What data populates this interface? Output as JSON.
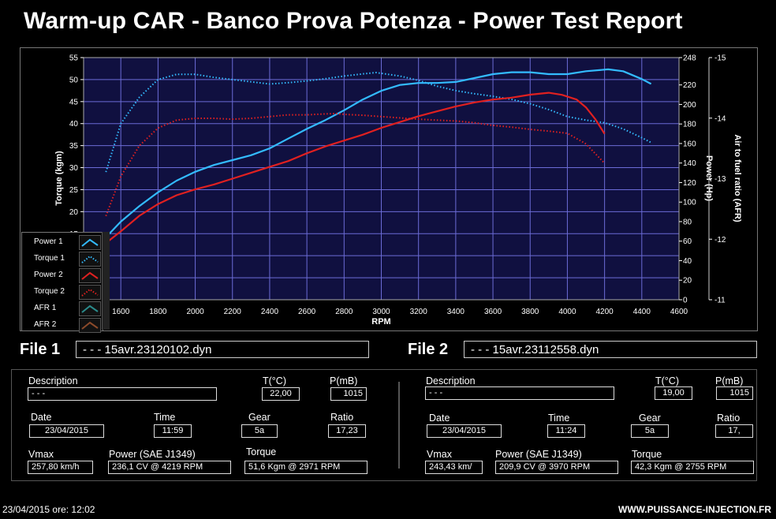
{
  "title": "Warm-up CAR  - Banco Prova Potenza -  Power Test Report",
  "chart_data": {
    "type": "line",
    "xlabel": "RPM",
    "ylabel_left": "Torque (kgm)",
    "ylabel_power": "Power (Hp)",
    "ylabel_afr": "Air to fuel ratio (AFR)",
    "xlim": [
      1400,
      4600
    ],
    "ylim_torque": [
      0,
      55
    ],
    "ylim_power": [
      0,
      248
    ],
    "ylim_afr": [
      11,
      15
    ],
    "x_ticks": [
      "1600",
      "1800",
      "2000",
      "2200",
      "2400",
      "2600",
      "2800",
      "3000",
      "3200",
      "3400",
      "3600",
      "3800",
      "4000",
      "4200",
      "4400",
      "4600"
    ],
    "torque_ticks": [
      "15",
      "20",
      "25",
      "30",
      "35",
      "40",
      "45",
      "50",
      "55"
    ],
    "power_ticks": [
      "0",
      "20",
      "40",
      "60",
      "80",
      "100",
      "120",
      "140",
      "160",
      "180",
      "200",
      "220",
      "248"
    ],
    "afr_ticks": [
      "-11",
      "-12",
      "-13",
      "-14",
      "-15"
    ],
    "grid": true,
    "series": [
      {
        "name": "Power 1",
        "axis": "power",
        "color": "#33bbff",
        "style": "solid",
        "x": [
          1500,
          1600,
          1700,
          1800,
          1900,
          2000,
          2100,
          2200,
          2300,
          2400,
          2500,
          2600,
          2700,
          2800,
          2900,
          3000,
          3100,
          3200,
          3300,
          3400,
          3500,
          3600,
          3700,
          3800,
          3900,
          4000,
          4100,
          4219,
          4300,
          4400,
          4450
        ],
        "y": [
          60,
          80,
          96,
          110,
          122,
          131,
          138,
          143,
          148,
          155,
          165,
          175,
          184,
          194,
          205,
          214,
          220,
          222,
          222,
          223,
          227,
          231,
          233,
          233,
          231,
          231,
          234,
          236,
          234,
          226,
          221
        ]
      },
      {
        "name": "Torque 1",
        "axis": "torque",
        "color": "#33bbff",
        "style": "dotted",
        "x": [
          1520,
          1600,
          1700,
          1800,
          1900,
          2000,
          2100,
          2200,
          2300,
          2400,
          2500,
          2600,
          2700,
          2800,
          2900,
          2971,
          3100,
          3200,
          3300,
          3400,
          3500,
          3600,
          3700,
          3800,
          3900,
          4000,
          4100,
          4200,
          4300,
          4400,
          4450
        ],
        "y": [
          29,
          40,
          46,
          50,
          51.2,
          51.2,
          50.5,
          50,
          49.5,
          49,
          49.3,
          49.7,
          50.2,
          50.8,
          51.3,
          51.6,
          50.8,
          49.8,
          48.5,
          47.5,
          46.8,
          46.2,
          45.5,
          44.5,
          43.2,
          41.6,
          40.8,
          40.2,
          38.8,
          36.8,
          35.7
        ]
      },
      {
        "name": "Power 2",
        "axis": "power",
        "color": "#e02020",
        "style": "solid",
        "x": [
          1500,
          1600,
          1700,
          1800,
          1900,
          2000,
          2100,
          2200,
          2300,
          2400,
          2500,
          2600,
          2700,
          2800,
          2900,
          3000,
          3100,
          3200,
          3300,
          3400,
          3500,
          3600,
          3700,
          3800,
          3900,
          3970,
          4050,
          4100,
          4150,
          4200
        ],
        "y": [
          55,
          70,
          86,
          98,
          107,
          113,
          118,
          124,
          130,
          136,
          142,
          150,
          157,
          163,
          169,
          176,
          182,
          188,
          193,
          198,
          202,
          205,
          207,
          210,
          212,
          209.9,
          205,
          197,
          185,
          170
        ]
      },
      {
        "name": "Torque 2",
        "axis": "torque",
        "color": "#e02020",
        "style": "dotted",
        "x": [
          1520,
          1600,
          1700,
          1800,
          1900,
          2000,
          2100,
          2200,
          2300,
          2400,
          2500,
          2600,
          2700,
          2755,
          2800,
          2900,
          3000,
          3100,
          3200,
          3300,
          3400,
          3500,
          3600,
          3700,
          3800,
          3900,
          4000,
          4100,
          4200
        ],
        "y": [
          19,
          28,
          35,
          39,
          40.8,
          41.2,
          41.2,
          41,
          41.2,
          41.6,
          42,
          42,
          42.2,
          42.3,
          42.1,
          41.9,
          41.6,
          41.3,
          41,
          40.8,
          40.6,
          40.2,
          39.6,
          39.2,
          38.7,
          38.3,
          37.8,
          35.4,
          31
        ]
      }
    ],
    "legend": [
      {
        "name": "Power 1",
        "color": "#33bbff",
        "style": "solid"
      },
      {
        "name": "Torque 1",
        "color": "#33bbff",
        "style": "dotted"
      },
      {
        "name": "Power 2",
        "color": "#e02020",
        "style": "solid"
      },
      {
        "name": "Torque 2",
        "color": "#e02020",
        "style": "dotted"
      },
      {
        "name": "AFR 1",
        "color": "#2a8c8c",
        "style": "solid"
      },
      {
        "name": "AFR 2",
        "color": "#8c4a2a",
        "style": "solid"
      }
    ],
    "legend_placement": "bottom-left"
  },
  "file1": {
    "label": "File 1",
    "name": "- - - 15avr.23120102.dyn",
    "description_label": "Description",
    "description": "- - -",
    "temp_label": "T(°C)",
    "temp": "22,00",
    "pressure_label": "P(mB)",
    "pressure": "1015",
    "date_label": "Date",
    "date": "23/04/2015",
    "time_label": "Time",
    "time": "11:59",
    "gear_label": "Gear",
    "gear": "5a",
    "ratio_label": "Ratio",
    "ratio": "17,23",
    "vmax_label": "Vmax",
    "vmax": "257,80 km/h",
    "power_label": "Power (SAE J1349)",
    "power": "236,1 CV  @ 4219  RPM",
    "torque_label": "Torque",
    "torque": "51,6 Kgm  @ 2971  RPM"
  },
  "file2": {
    "label": "File 2",
    "name": "- - - 15avr.23112558.dyn",
    "description_label": "Description",
    "description": "- - -",
    "temp_label": "T(°C)",
    "temp": "19,00",
    "pressure_label": "P(mB)",
    "pressure": "1015",
    "date_label": "Date",
    "date": "23/04/2015",
    "time_label": "Time",
    "time": "11:24",
    "gear_label": "Gear",
    "gear": "5a",
    "ratio_label": "Ratio",
    "ratio": "17,",
    "vmax_label": "Vmax",
    "vmax": "243,43 km/",
    "power_label": "Power (SAE J1349)",
    "power": "209,9 CV  @ 3970  RPM",
    "torque_label": "Torque",
    "torque": "42,3 Kgm  @ 2755  RPM"
  },
  "footer": {
    "datetime": "23/04/2015  ore: 12:02",
    "website": "WWW.PUISSANCE-INJECTION.FR"
  }
}
